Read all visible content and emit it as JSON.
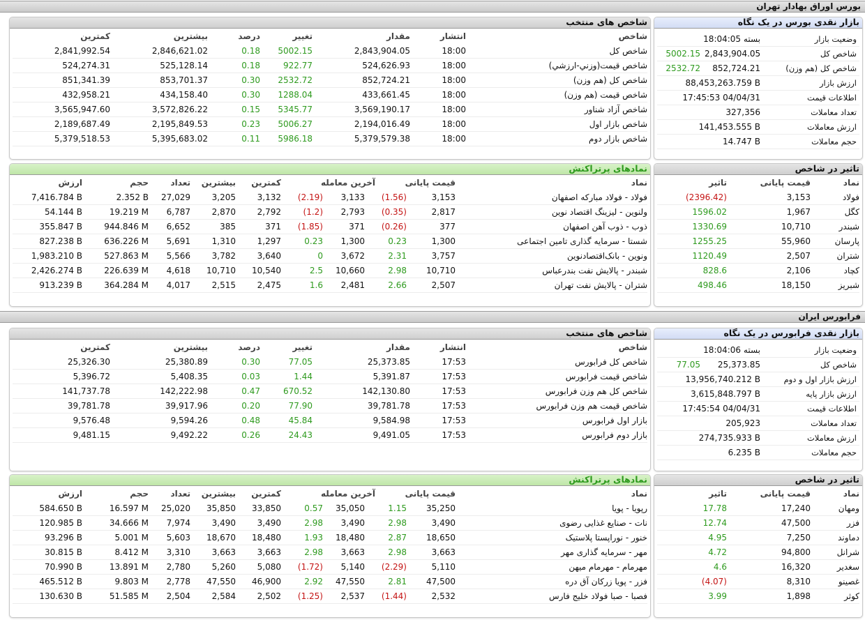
{
  "colors": {
    "positive": "#2e9a1e",
    "negative": "#c41414",
    "header_gray": "#d9d9d9",
    "header_blue": "#dbe3f7",
    "header_green": "#c9ebb4"
  },
  "tehran": {
    "section_title": "بورس اوراق بهادار تهران",
    "glance": {
      "title": "بازار نقدی بورس در یک نگاه",
      "rows": [
        {
          "label": "وضعیت بازار",
          "value": "بسته 18:04:05",
          "change": ""
        },
        {
          "label": "شاخص کل",
          "value": "2,843,904.05",
          "change": "5002.15"
        },
        {
          "label": "شاخص کل (هم وزن)",
          "value": "852,724.21",
          "change": "2532.72"
        },
        {
          "label": "ارزش بازار",
          "value": "88,453,263.759 B",
          "change": ""
        },
        {
          "label": "اطلاعات قیمت",
          "value": "17:45:53 04/04/31",
          "change": ""
        },
        {
          "label": "تعداد معاملات",
          "value": "327,356",
          "change": ""
        },
        {
          "label": "ارزش معاملات",
          "value": "141,453.555 B",
          "change": ""
        },
        {
          "label": "حجم معاملات",
          "value": "14.747 B",
          "change": ""
        }
      ]
    },
    "indices": {
      "title": "شاخص های منتخب",
      "headers": {
        "name": "شاخص",
        "time": "انتشار",
        "value": "مقدار",
        "change": "تغییر",
        "percent": "درصد",
        "high": "بیشترین",
        "low": "کمترین"
      },
      "rows": [
        {
          "name": "شاخص کل",
          "time": "18:00",
          "value": "2,843,904.05",
          "change": "5002.15",
          "percent": "0.18",
          "high": "2,846,621.02",
          "low": "2,841,992.54"
        },
        {
          "name": "شاخص قیمت(وزني-ارزشي)",
          "time": "18:00",
          "value": "524,626.93",
          "change": "922.77",
          "percent": "0.18",
          "high": "525,128.14",
          "low": "524,274.31"
        },
        {
          "name": "شاخص کل (هم وزن)",
          "time": "18:00",
          "value": "852,724.21",
          "change": "2532.72",
          "percent": "0.30",
          "high": "853,701.37",
          "low": "851,341.39"
        },
        {
          "name": "شاخص قیمت (هم وزن)",
          "time": "18:00",
          "value": "433,661.45",
          "change": "1288.04",
          "percent": "0.30",
          "high": "434,158.40",
          "low": "432,958.21"
        },
        {
          "name": "شاخص آزاد شناور",
          "time": "18:00",
          "value": "3,569,190.17",
          "change": "5345.77",
          "percent": "0.15",
          "high": "3,572,826.22",
          "low": "3,565,947.60"
        },
        {
          "name": "شاخص بازار اول",
          "time": "18:00",
          "value": "2,194,016.49",
          "change": "5006.27",
          "percent": "0.23",
          "high": "2,195,849.53",
          "low": "2,189,687.49"
        },
        {
          "name": "شاخص بازار دوم",
          "time": "18:00",
          "value": "5,379,579.38",
          "change": "5986.18",
          "percent": "0.11",
          "high": "5,395,683.02",
          "low": "5,379,518.53"
        }
      ]
    },
    "impact": {
      "title": "تاثیر در شاخص",
      "headers": {
        "symbol": "نماد",
        "close": "قیمت پایانی",
        "effect": "تاثیر"
      },
      "rows": [
        {
          "symbol": "فولاد",
          "close": "3,153",
          "effect": "(2396.42)",
          "neg": true
        },
        {
          "symbol": "کگل",
          "close": "1,967",
          "effect": "1596.02",
          "neg": false
        },
        {
          "symbol": "شبندر",
          "close": "10,710",
          "effect": "1330.69",
          "neg": false
        },
        {
          "symbol": "پارسان",
          "close": "55,960",
          "effect": "1255.25",
          "neg": false
        },
        {
          "symbol": "شتران",
          "close": "2,507",
          "effect": "1120.49",
          "neg": false
        },
        {
          "symbol": "کچاد",
          "close": "2,106",
          "effect": "828.6",
          "neg": false
        },
        {
          "symbol": "شبریز",
          "close": "18,150",
          "effect": "498.46",
          "neg": false
        }
      ]
    },
    "active": {
      "title": "نمادهای پرتراکنش",
      "headers": {
        "symbol": "نماد",
        "close": "قیمت پایانی",
        "last": "آخرین معامله",
        "low": "کمترین",
        "high": "بیشترین",
        "count": "تعداد",
        "volume": "حجم",
        "value": "ارزش"
      },
      "rows": [
        {
          "symbol": "فولاد - فولاد مبارکه اصفهان",
          "close": "3,153",
          "close_chg": "(1.56)",
          "close_neg": true,
          "last": "3,133",
          "last_chg": "(2.19)",
          "last_neg": true,
          "low": "3,132",
          "high": "3,205",
          "count": "27,029",
          "volume": "2.352 B",
          "value": "7,416.784 B"
        },
        {
          "symbol": "ولنوین - لیزینگ اقتصاد نوین",
          "close": "2,817",
          "close_chg": "(0.35)",
          "close_neg": true,
          "last": "2,793",
          "last_chg": "(1.2)",
          "last_neg": true,
          "low": "2,792",
          "high": "2,870",
          "count": "6,787",
          "volume": "19.219 M",
          "value": "54.144 B"
        },
        {
          "symbol": "ذوب - ذوب آهن اصفهان",
          "close": "377",
          "close_chg": "(0.26)",
          "close_neg": true,
          "last": "371",
          "last_chg": "(1.85)",
          "last_neg": true,
          "low": "371",
          "high": "385",
          "count": "6,652",
          "volume": "944.846 M",
          "value": "355.847 B"
        },
        {
          "symbol": "شستا - سرمایه گذاری تامین اجتماعی",
          "close": "1,300",
          "close_chg": "0.23",
          "close_neg": false,
          "last": "1,300",
          "last_chg": "0.23",
          "last_neg": false,
          "low": "1,297",
          "high": "1,310",
          "count": "5,691",
          "volume": "636.226 M",
          "value": "827.238 B"
        },
        {
          "symbol": "ونوین - بانک‌اقتصادنوین",
          "close": "3,757",
          "close_chg": "2.31",
          "close_neg": false,
          "last": "3,672",
          "last_chg": "0",
          "last_neg": false,
          "low": "3,640",
          "high": "3,782",
          "count": "5,566",
          "volume": "527.863 M",
          "value": "1,983.210 B"
        },
        {
          "symbol": "شبندر - پالایش نفت بندرعباس",
          "close": "10,710",
          "close_chg": "2.98",
          "close_neg": false,
          "last": "10,660",
          "last_chg": "2.5",
          "last_neg": false,
          "low": "10,540",
          "high": "10,710",
          "count": "4,618",
          "volume": "226.639 M",
          "value": "2,426.274 B"
        },
        {
          "symbol": "شتران - پالایش نفت تهران",
          "close": "2,507",
          "close_chg": "2.66",
          "close_neg": false,
          "last": "2,481",
          "last_chg": "1.6",
          "last_neg": false,
          "low": "2,475",
          "high": "2,515",
          "count": "4,017",
          "volume": "364.284 M",
          "value": "913.239 B"
        }
      ]
    }
  },
  "farabourse": {
    "section_title": "فرابورس ایران",
    "glance": {
      "title": "بازار نقدی فرابورس در یک نگاه",
      "rows": [
        {
          "label": "وضعیت بازار",
          "value": "بسته 18:04:06",
          "change": ""
        },
        {
          "label": "شاخص کل",
          "value": "25,373.85",
          "change": "77.05"
        },
        {
          "label": "ارزش بازار اول و دوم",
          "value": "13,956,740.212 B",
          "change": ""
        },
        {
          "label": "ارزش بازار پایه",
          "value": "3,615,848.797 B",
          "change": ""
        },
        {
          "label": "اطلاعات قیمت",
          "value": "17:45:54 04/04/31",
          "change": ""
        },
        {
          "label": "تعداد معاملات",
          "value": "205,923",
          "change": ""
        },
        {
          "label": "ارزش معاملات",
          "value": "274,735.933 B",
          "change": ""
        },
        {
          "label": "حجم معاملات",
          "value": "6.235 B",
          "change": ""
        }
      ]
    },
    "indices": {
      "title": "شاخص های منتخب",
      "headers": {
        "name": "شاخص",
        "time": "انتشار",
        "value": "مقدار",
        "change": "تغییر",
        "percent": "درصد",
        "high": "بیشترین",
        "low": "کمترین"
      },
      "rows": [
        {
          "name": "شاخص کل فرابورس",
          "time": "17:53",
          "value": "25,373.85",
          "change": "77.05",
          "percent": "0.30",
          "high": "25,380.89",
          "low": "25,326.30"
        },
        {
          "name": "شاخص قیمت فرابورس",
          "time": "17:53",
          "value": "5,391.87",
          "change": "1.44",
          "percent": "0.03",
          "high": "5,408.35",
          "low": "5,396.72"
        },
        {
          "name": "شاخص کل هم وزن فرابورس",
          "time": "17:53",
          "value": "142,130.80",
          "change": "670.52",
          "percent": "0.47",
          "high": "142,222.98",
          "low": "141,737.78"
        },
        {
          "name": "شاخص قیمت هم وزن فرابورس",
          "time": "17:53",
          "value": "39,781.78",
          "change": "77.90",
          "percent": "0.20",
          "high": "39,917.96",
          "low": "39,781.78"
        },
        {
          "name": "بازار اول فرابورس",
          "time": "17:53",
          "value": "9,584.98",
          "change": "45.84",
          "percent": "0.48",
          "high": "9,594.26",
          "low": "9,576.48"
        },
        {
          "name": "بازار دوم فرابورس",
          "time": "17:53",
          "value": "9,491.05",
          "change": "24.43",
          "percent": "0.26",
          "high": "9,492.22",
          "low": "9,481.15"
        }
      ]
    },
    "impact": {
      "title": "تاثیر در شاخص",
      "headers": {
        "symbol": "نماد",
        "close": "قیمت پایانی",
        "effect": "تاثیر"
      },
      "rows": [
        {
          "symbol": "ومهان",
          "close": "17,240",
          "effect": "17.78",
          "neg": false
        },
        {
          "symbol": "فزر",
          "close": "47,500",
          "effect": "12.74",
          "neg": false
        },
        {
          "symbol": "دماوند",
          "close": "7,250",
          "effect": "4.95",
          "neg": false
        },
        {
          "symbol": "شرانل",
          "close": "94,800",
          "effect": "4.72",
          "neg": false
        },
        {
          "symbol": "سغدیر",
          "close": "16,320",
          "effect": "4.6",
          "neg": false
        },
        {
          "symbol": "غصینو",
          "close": "8,310",
          "effect": "(4.07)",
          "neg": true
        },
        {
          "symbol": "کوثر",
          "close": "1,898",
          "effect": "3.99",
          "neg": false
        }
      ]
    },
    "active": {
      "title": "نمادهای پرتراکنش",
      "headers": {
        "symbol": "نماد",
        "close": "قیمت پایانی",
        "last": "آخرین معامله",
        "low": "کمترین",
        "high": "بیشترین",
        "count": "تعداد",
        "volume": "حجم",
        "value": "ارزش"
      },
      "rows": [
        {
          "symbol": "رپویا - پویا",
          "close": "35,250",
          "close_chg": "1.15",
          "close_neg": false,
          "last": "35,050",
          "last_chg": "0.57",
          "last_neg": false,
          "low": "33,850",
          "high": "35,850",
          "count": "25,020",
          "volume": "16.597 M",
          "value": "584.650 B"
        },
        {
          "symbol": "نات - صنایع غذایی رضوی",
          "close": "3,490",
          "close_chg": "2.98",
          "close_neg": false,
          "last": "3,490",
          "last_chg": "2.98",
          "last_neg": false,
          "low": "3,490",
          "high": "3,490",
          "count": "7,974",
          "volume": "34.666 M",
          "value": "120.985 B"
        },
        {
          "symbol": "خنور - نوراپستا پلاستیک",
          "close": "18,650",
          "close_chg": "2.87",
          "close_neg": false,
          "last": "18,480",
          "last_chg": "1.93",
          "last_neg": false,
          "low": "18,480",
          "high": "18,670",
          "count": "5,603",
          "volume": "5.001 M",
          "value": "93.296 B"
        },
        {
          "symbol": "مهر - سرمایه گذاری مهر",
          "close": "3,663",
          "close_chg": "2.98",
          "close_neg": false,
          "last": "3,663",
          "last_chg": "2.98",
          "last_neg": false,
          "low": "3,663",
          "high": "3,663",
          "count": "3,310",
          "volume": "8.412 M",
          "value": "30.815 B"
        },
        {
          "symbol": "مهرمام - مهرمام میهن",
          "close": "5,110",
          "close_chg": "(2.29)",
          "close_neg": true,
          "last": "5,140",
          "last_chg": "(1.72)",
          "last_neg": true,
          "low": "5,080",
          "high": "5,260",
          "count": "2,780",
          "volume": "13.891 M",
          "value": "70.990 B"
        },
        {
          "symbol": "فزر - پویا زرکان آق دره",
          "close": "47,500",
          "close_chg": "2.81",
          "close_neg": false,
          "last": "47,550",
          "last_chg": "2.92",
          "last_neg": false,
          "low": "46,900",
          "high": "47,550",
          "count": "2,778",
          "volume": "9.803 M",
          "value": "465.512 B"
        },
        {
          "symbol": "فصبا - صبا فولاد خلیج فارس",
          "close": "2,532",
          "close_chg": "(1.44)",
          "close_neg": true,
          "last": "2,537",
          "last_chg": "(1.25)",
          "last_neg": true,
          "low": "2,502",
          "high": "2,584",
          "count": "2,504",
          "volume": "51.585 M",
          "value": "130.630 B"
        }
      ]
    }
  }
}
